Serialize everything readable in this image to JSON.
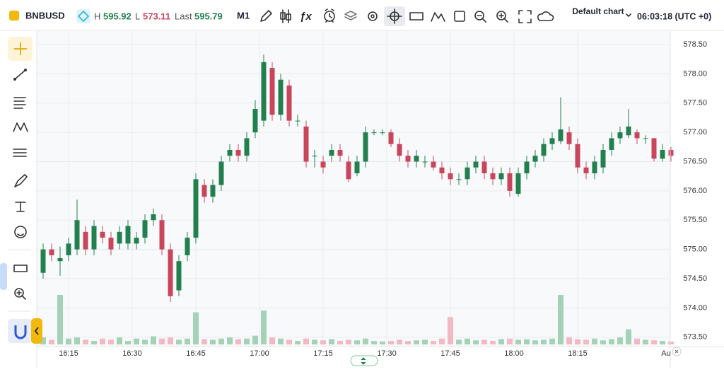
{
  "toolbar": {
    "symbol": "BNBUSD",
    "high_label": "H",
    "high": "595.92",
    "low_label": "L",
    "low": "573.11",
    "last_label": "Last",
    "last": "595.79",
    "interval": "M1",
    "layout": "Default chart",
    "clock": "06:03:18 (UTC +0)"
  },
  "chart_data": {
    "type": "candlestick",
    "open": [
      574.6,
      575.0,
      574.8,
      574.9,
      575.0,
      575.3,
      575.0,
      575.3,
      575.2,
      575.1,
      575.1,
      575.1,
      575.2,
      575.5,
      575.5,
      575.0,
      574.3,
      574.9,
      575.2,
      576.1,
      575.9,
      576.1,
      576.6,
      576.7,
      576.6,
      577.0,
      577.2,
      578.1,
      577.3,
      577.8,
      577.2,
      577.1,
      576.6,
      576.5,
      576.6,
      576.7,
      576.5,
      576.3,
      576.5,
      577.0,
      577.0,
      577.0,
      576.8,
      576.6,
      576.5,
      576.5,
      576.5,
      576.4,
      576.3,
      576.2,
      576.2,
      576.4,
      576.5,
      576.3,
      576.2,
      576.3,
      575.95,
      576.3,
      576.5,
      576.6,
      576.8,
      576.85,
      577.0,
      576.8,
      576.4,
      576.3,
      576.4,
      576.7,
      576.9,
      576.95,
      577.0,
      576.9,
      576.9,
      576.55,
      576.7
    ],
    "high": [
      575.1,
      575.1,
      575.05,
      575.2,
      575.85,
      575.4,
      575.5,
      575.4,
      575.3,
      575.4,
      575.5,
      575.3,
      575.6,
      575.7,
      575.6,
      575.1,
      574.9,
      575.3,
      576.3,
      576.2,
      576.2,
      576.6,
      576.8,
      576.8,
      577.0,
      577.55,
      578.33,
      578.2,
      578.0,
      577.9,
      577.3,
      577.2,
      576.7,
      576.6,
      576.8,
      576.8,
      576.6,
      576.6,
      577.1,
      577.05,
      577.05,
      577.05,
      576.9,
      576.7,
      576.7,
      576.6,
      576.6,
      576.5,
      576.4,
      576.3,
      576.5,
      576.6,
      576.6,
      576.4,
      576.4,
      576.4,
      576.4,
      576.6,
      576.7,
      576.9,
      577.0,
      577.6,
      577.1,
      576.9,
      576.5,
      576.6,
      576.8,
      577.0,
      577.1,
      577.4,
      577.05,
      576.95,
      576.9,
      576.8,
      576.75
    ],
    "low": [
      574.5,
      574.8,
      574.55,
      574.8,
      574.9,
      574.9,
      574.9,
      575.1,
      574.9,
      575.0,
      575.0,
      575.0,
      575.1,
      575.4,
      574.9,
      574.1,
      574.2,
      574.8,
      575.1,
      575.8,
      575.8,
      576.0,
      576.5,
      576.5,
      576.5,
      576.9,
      577.1,
      577.2,
      577.2,
      577.1,
      577.1,
      576.4,
      576.4,
      576.3,
      576.5,
      576.5,
      576.15,
      576.25,
      576.4,
      576.95,
      576.95,
      576.75,
      576.5,
      576.4,
      576.4,
      576.4,
      576.35,
      576.2,
      576.1,
      576.1,
      576.1,
      576.3,
      576.2,
      576.1,
      576.1,
      575.9,
      575.9,
      576.2,
      576.4,
      576.5,
      576.7,
      576.8,
      576.7,
      576.3,
      576.2,
      576.2,
      576.3,
      576.6,
      576.8,
      576.9,
      576.8,
      576.8,
      576.5,
      576.5,
      576.5
    ],
    "close": [
      575.0,
      574.9,
      574.85,
      575.1,
      575.5,
      575.0,
      575.4,
      575.2,
      575.0,
      575.3,
      575.4,
      575.2,
      575.5,
      575.6,
      575.0,
      574.2,
      574.8,
      575.2,
      576.2,
      575.9,
      576.1,
      576.5,
      576.7,
      576.6,
      576.9,
      577.4,
      578.2,
      577.3,
      577.9,
      577.2,
      577.2,
      576.5,
      576.6,
      576.4,
      576.7,
      576.6,
      576.2,
      576.5,
      577.0,
      577.0,
      577.0,
      576.8,
      576.6,
      576.5,
      576.6,
      576.5,
      576.4,
      576.3,
      576.2,
      576.2,
      576.4,
      576.5,
      576.3,
      576.2,
      576.3,
      576.0,
      576.3,
      576.5,
      576.6,
      576.8,
      576.9,
      577.05,
      576.8,
      576.4,
      576.3,
      576.5,
      576.7,
      576.9,
      577.0,
      577.1,
      576.9,
      576.9,
      576.55,
      576.7,
      576.6
    ],
    "volume": [
      12,
      8,
      85,
      10,
      12,
      8,
      6,
      10,
      8,
      12,
      6,
      10,
      8,
      14,
      10,
      12,
      8,
      10,
      55,
      9,
      8,
      10,
      12,
      9,
      10,
      15,
      58,
      12,
      10,
      8,
      6,
      10,
      8,
      7,
      9,
      6,
      8,
      7,
      10,
      6,
      5,
      6,
      8,
      6,
      7,
      8,
      6,
      10,
      47,
      8,
      10,
      7,
      8,
      6,
      9,
      10,
      8,
      9,
      7,
      8,
      10,
      85,
      12,
      9,
      8,
      10,
      7,
      9,
      12,
      26,
      10,
      8,
      7,
      6,
      5
    ],
    "up_color": "#22804f",
    "down_color": "#c8455c",
    "up_volume_color": "#a3d2b7",
    "down_volume_color": "#f2b8c4",
    "ylim": [
      573.34,
      578.73
    ],
    "yticks": [
      {
        "value": 573.5,
        "label": "573.50"
      },
      {
        "value": 574,
        "label": "574.00"
      },
      {
        "value": 574.5,
        "label": "574.50"
      },
      {
        "value": 575,
        "label": "575.00"
      },
      {
        "value": 575.5,
        "label": "575.50"
      },
      {
        "value": 576,
        "label": "576.00"
      },
      {
        "value": 576.5,
        "label": "576.50"
      },
      {
        "value": 577,
        "label": "577.00"
      },
      {
        "value": 577.5,
        "label": "577.50"
      },
      {
        "value": 578,
        "label": "578.00"
      },
      {
        "value": 578.5,
        "label": "578.50"
      }
    ],
    "time_labels": [
      "16:15",
      "16:30",
      "16:45",
      "17:00",
      "17:15",
      "17:30",
      "17:45",
      "18:00",
      "18:15",
      "Au"
    ],
    "grid": true
  }
}
